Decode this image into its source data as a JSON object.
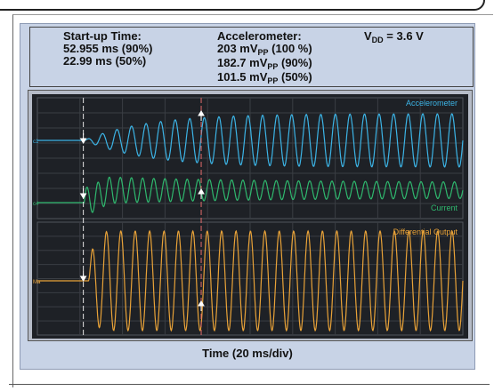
{
  "header": {
    "startup_title": "Start-up Time:",
    "startup_90": "52.955 ms (90%)",
    "startup_50": "22.99 ms (50%)",
    "accel_title": "Accelerometer:",
    "accel_100_value": "203 mV",
    "accel_100_pct": " (100 %)",
    "accel_90_value": "182.7 mV",
    "accel_90_pct": " (90%)",
    "accel_50_value": "101.5 mV",
    "accel_50_pct": " (50%)",
    "vpp_sub": "PP",
    "vdd_label": "V",
    "vdd_sub": "DD",
    "vdd_value": " = 3.6 V"
  },
  "chart_data": {
    "type": "line",
    "xlabel": "Time (20 ms/div)",
    "grid": true,
    "x_divisions": 10,
    "series": [
      {
        "name": "Accelerometer",
        "color": "#3cb4e6",
        "channel_tag": "c1",
        "start_div": 1.1,
        "cycles": 26,
        "ramp_divs": 3.2,
        "behavior": "amplitude ramps up after start"
      },
      {
        "name": "Current",
        "color": "#2fb86e",
        "channel_tag": "c4",
        "start_div": 1.1,
        "cycles": 34,
        "ramp_divs": 3.5,
        "behavior": "large burst at start, decaying to steady oscillation"
      },
      {
        "name": "Differential Output",
        "color": "#e8a238",
        "channel_tag": "Ma",
        "start_div": 1.2,
        "cycles": 26,
        "ramp_divs": 0.2,
        "behavior": "full amplitude immediately"
      }
    ],
    "markers": [
      {
        "label": "50%",
        "x_div": 1.08,
        "color": "#e6e6e6"
      },
      {
        "label": "90%",
        "x_div": 3.85,
        "color": "#e36a6a"
      }
    ]
  }
}
